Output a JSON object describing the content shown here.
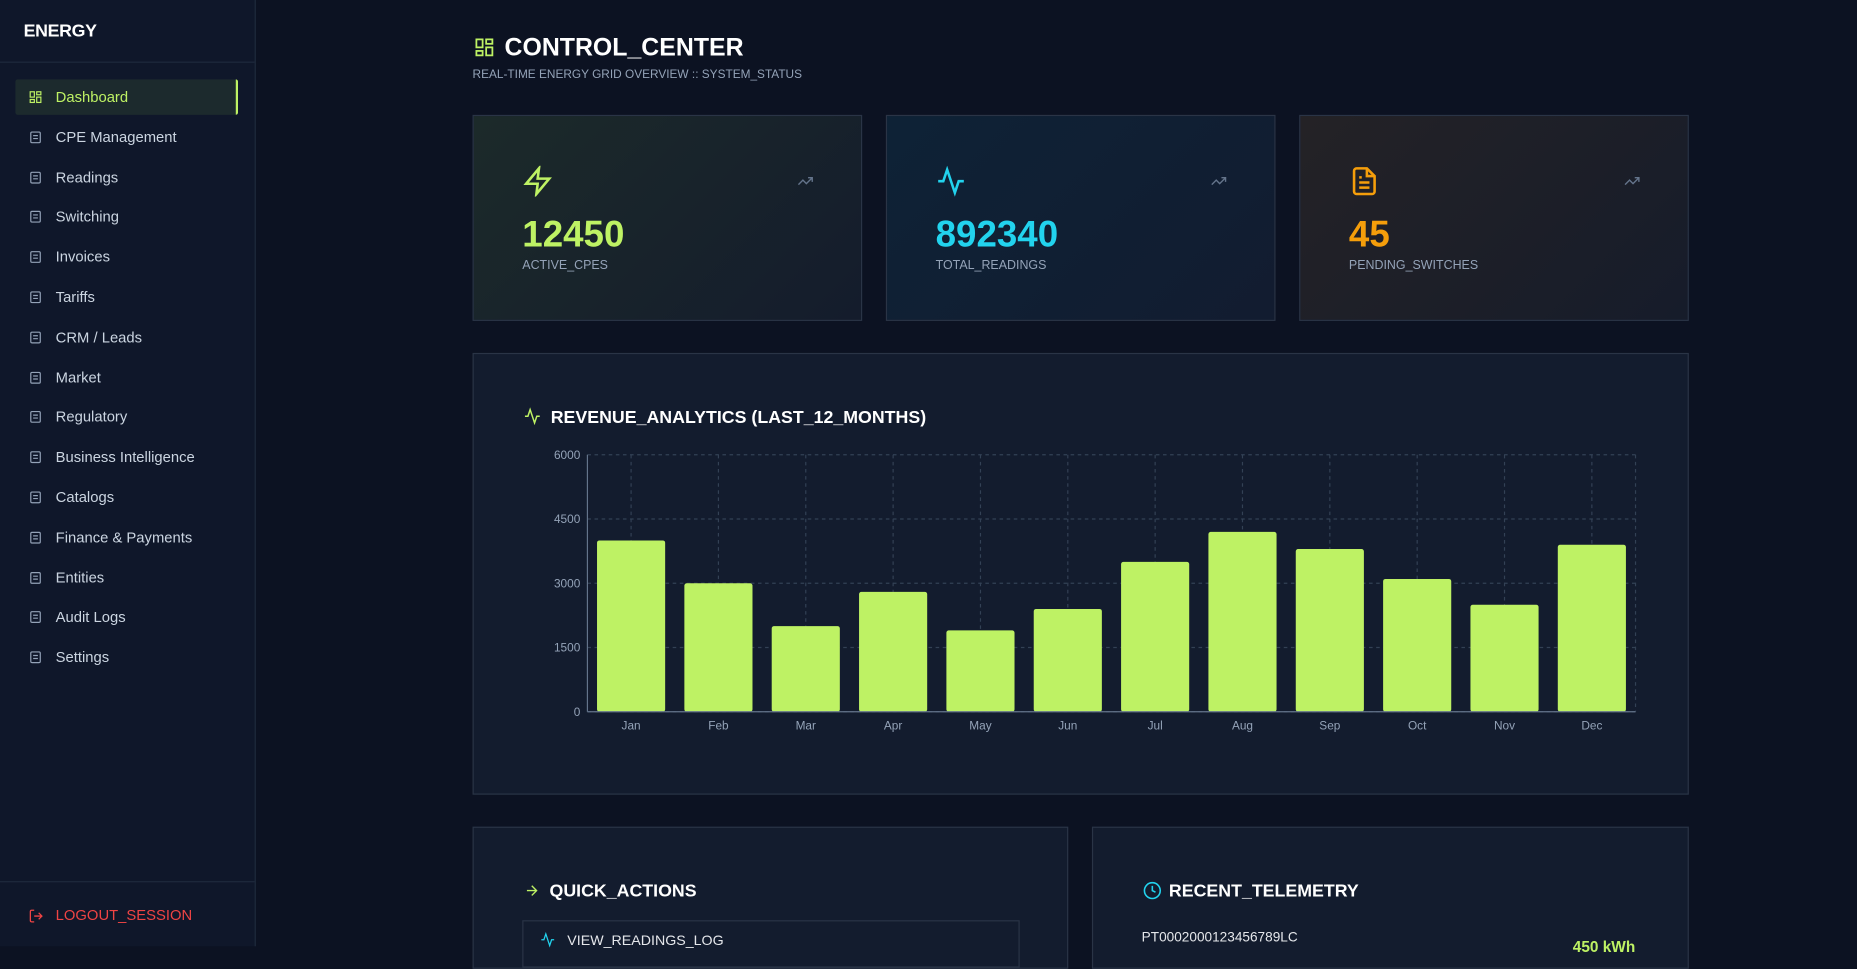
{
  "sidebar": {
    "brand": "ENERGY",
    "nav": [
      "Dashboard",
      "CPE Management",
      "Readings",
      "Switching",
      "Invoices",
      "Tariffs",
      "CRM / Leads",
      "Market",
      "Regulatory",
      "Business Intelligence",
      "Catalogs",
      "Finance & Payments",
      "Entities",
      "Audit Logs",
      "Settings"
    ],
    "logout": "LOGOUT_SESSION"
  },
  "header": {
    "title": "CONTROL_CENTER",
    "subtitle": "REAL-TIME ENERGY GRID OVERVIEW :: SYSTEM_STATUS"
  },
  "stats": [
    {
      "value": 12450,
      "label": "ACTIVE_CPES"
    },
    {
      "value": 892340,
      "label": "TOTAL_READINGS"
    },
    {
      "value": 45,
      "label": "PENDING_SWITCHES"
    }
  ],
  "chart_data": {
    "type": "bar",
    "title": "REVENUE_ANALYTICS (LAST_12_MONTHS)",
    "categories": [
      "Jan",
      "Feb",
      "Mar",
      "Apr",
      "May",
      "Jun",
      "Jul",
      "Aug",
      "Sep",
      "Oct",
      "Nov",
      "Dec"
    ],
    "values": [
      4000,
      3000,
      2000,
      2800,
      1900,
      2400,
      3500,
      4200,
      3800,
      3100,
      2500,
      3900
    ],
    "color": "#bef264",
    "ylim": [
      0,
      6000
    ],
    "yticks": [
      0,
      1500,
      3000,
      4500,
      6000
    ],
    "grid": true
  },
  "quick_actions": {
    "title": "QUICK_ACTIONS",
    "items": [
      "VIEW_READINGS_LOG"
    ]
  },
  "telemetry": {
    "title": "RECENT_TELEMETRY",
    "rows": [
      {
        "id": "PT0002000123456789LC",
        "value": "450 kWh"
      }
    ]
  }
}
